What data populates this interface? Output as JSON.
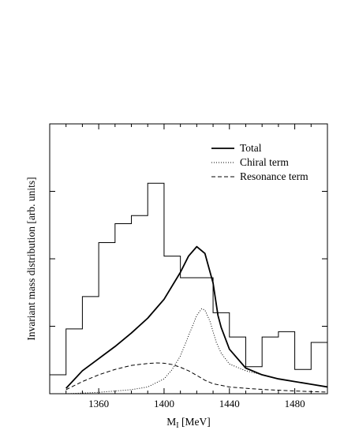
{
  "chart_data": {
    "type": "line",
    "xlabel": "M",
    "xlabel_sub": "I",
    "xlabel_unit": " [MeV]",
    "ylabel": "Invariant mass distribution [arb. units]",
    "xlim": [
      1330,
      1500
    ],
    "ylim": [
      0,
      1.0
    ],
    "x_ticks": [
      1360,
      1400,
      1440,
      1480
    ],
    "y_ticks_visible_labels": false,
    "grid": false,
    "legend_placement": "top-right",
    "legend": [
      {
        "name": "Total",
        "style": "solid"
      },
      {
        "name": "Chiral term",
        "style": "dotted"
      },
      {
        "name": "Resonance term",
        "style": "dashed"
      }
    ],
    "histogram": {
      "bin_edges": [
        1330,
        1340,
        1350,
        1360,
        1370,
        1380,
        1390,
        1400,
        1410,
        1420,
        1430,
        1440,
        1450,
        1460,
        1470,
        1480,
        1490,
        1500
      ],
      "values": [
        0.07,
        0.24,
        0.36,
        0.56,
        0.63,
        0.66,
        0.78,
        0.51,
        0.43,
        0.43,
        0.3,
        0.21,
        0.1,
        0.21,
        0.23,
        0.09,
        0.19
      ]
    },
    "series": [
      {
        "name": "Total",
        "style": "solid",
        "x": [
          1340,
          1350,
          1360,
          1370,
          1380,
          1390,
          1400,
          1410,
          1415,
          1420,
          1425,
          1430,
          1433,
          1435,
          1440,
          1450,
          1460,
          1470,
          1480,
          1490,
          1500
        ],
        "y": [
          0.02,
          0.085,
          0.13,
          0.175,
          0.225,
          0.28,
          0.35,
          0.45,
          0.51,
          0.545,
          0.52,
          0.41,
          0.29,
          0.245,
          0.165,
          0.095,
          0.07,
          0.055,
          0.045,
          0.035,
          0.025
        ]
      },
      {
        "name": "Chiral term",
        "style": "dotted",
        "x": [
          1340,
          1360,
          1380,
          1390,
          1400,
          1405,
          1410,
          1415,
          1420,
          1423,
          1425,
          1428,
          1432,
          1435,
          1440,
          1450,
          1460,
          1470,
          1480,
          1490,
          1500
        ],
        "y": [
          0.0,
          0.005,
          0.015,
          0.025,
          0.055,
          0.09,
          0.14,
          0.215,
          0.29,
          0.315,
          0.31,
          0.27,
          0.19,
          0.15,
          0.11,
          0.085,
          0.07,
          0.055,
          0.045,
          0.035,
          0.025
        ]
      },
      {
        "name": "Resonance term",
        "style": "dashed",
        "x": [
          1340,
          1350,
          1360,
          1370,
          1380,
          1390,
          1395,
          1400,
          1405,
          1410,
          1415,
          1420,
          1425,
          1430,
          1440,
          1450,
          1460,
          1470,
          1480,
          1490,
          1500
        ],
        "y": [
          0.015,
          0.045,
          0.07,
          0.09,
          0.105,
          0.112,
          0.114,
          0.113,
          0.108,
          0.098,
          0.085,
          0.068,
          0.05,
          0.037,
          0.025,
          0.02,
          0.016,
          0.013,
          0.01,
          0.008,
          0.006
        ]
      }
    ]
  }
}
